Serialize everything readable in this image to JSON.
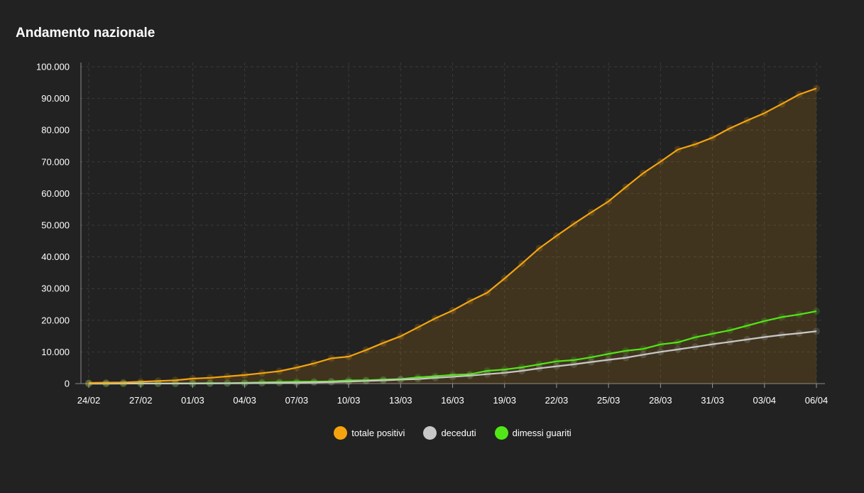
{
  "page": {
    "title": "Andamento nazionale"
  },
  "chart_data": {
    "type": "line",
    "title": "Andamento nazionale",
    "xlabel": "",
    "ylabel": "",
    "ylim": [
      0,
      100000
    ],
    "yticks": [
      0,
      10000,
      20000,
      30000,
      40000,
      50000,
      60000,
      70000,
      80000,
      90000,
      100000
    ],
    "ytick_labels": [
      "0",
      "10.000",
      "20.000",
      "30.000",
      "40.000",
      "50.000",
      "60.000",
      "70.000",
      "80.000",
      "90.000",
      "100.000"
    ],
    "categories": [
      "24/02",
      "25/02",
      "26/02",
      "27/02",
      "28/02",
      "29/02",
      "01/03",
      "02/03",
      "03/03",
      "04/03",
      "05/03",
      "06/03",
      "07/03",
      "08/03",
      "09/03",
      "10/03",
      "11/03",
      "12/03",
      "13/03",
      "14/03",
      "15/03",
      "16/03",
      "17/03",
      "18/03",
      "19/03",
      "20/03",
      "21/03",
      "22/03",
      "23/03",
      "24/03",
      "25/03",
      "26/03",
      "27/03",
      "28/03",
      "29/03",
      "30/03",
      "31/03",
      "01/04",
      "02/04",
      "03/04",
      "04/04",
      "05/04",
      "06/04"
    ],
    "xtick_labels": [
      "24/02",
      "27/02",
      "01/03",
      "04/03",
      "07/03",
      "10/03",
      "13/03",
      "16/03",
      "19/03",
      "22/03",
      "25/03",
      "28/03",
      "31/03",
      "03/04",
      "06/04"
    ],
    "grid": true,
    "legend_position": "bottom-center",
    "series": [
      {
        "name": "totale positivi",
        "color": "#f5a40f",
        "area": true,
        "values": [
          221,
          311,
          385,
          588,
          821,
          1049,
          1577,
          1835,
          2263,
          2706,
          3296,
          3916,
          5061,
          6387,
          7985,
          8514,
          10590,
          12839,
          14955,
          17750,
          20603,
          23073,
          26062,
          28710,
          33190,
          37860,
          42681,
          46638,
          50418,
          54030,
          57521,
          62013,
          66414,
          70065,
          73880,
          75528,
          77635,
          80572,
          83049,
          85388,
          88274,
          91246,
          93187
        ]
      },
      {
        "name": "deceduti",
        "color": "#c8c8c8",
        "area": false,
        "values": [
          7,
          10,
          12,
          17,
          21,
          29,
          34,
          52,
          79,
          107,
          148,
          197,
          233,
          366,
          463,
          631,
          827,
          1016,
          1266,
          1441,
          1809,
          2158,
          2503,
          2978,
          3405,
          4032,
          4825,
          5476,
          6077,
          6820,
          7503,
          8165,
          9134,
          10023,
          10779,
          11591,
          12428,
          13155,
          13915,
          14681,
          15362,
          15887,
          16523
        ]
      },
      {
        "name": "dimessi guariti",
        "color": "#52e619",
        "area": false,
        "values": [
          1,
          1,
          3,
          45,
          46,
          50,
          83,
          149,
          160,
          276,
          414,
          523,
          589,
          622,
          724,
          1004,
          1045,
          1258,
          1439,
          1966,
          2335,
          2749,
          2941,
          4025,
          4440,
          5129,
          6072,
          7024,
          7432,
          8326,
          9362,
          10361,
          10950,
          12384,
          13030,
          14620,
          15729,
          16847,
          18278,
          19758,
          20996,
          21815,
          22837
        ]
      }
    ]
  }
}
